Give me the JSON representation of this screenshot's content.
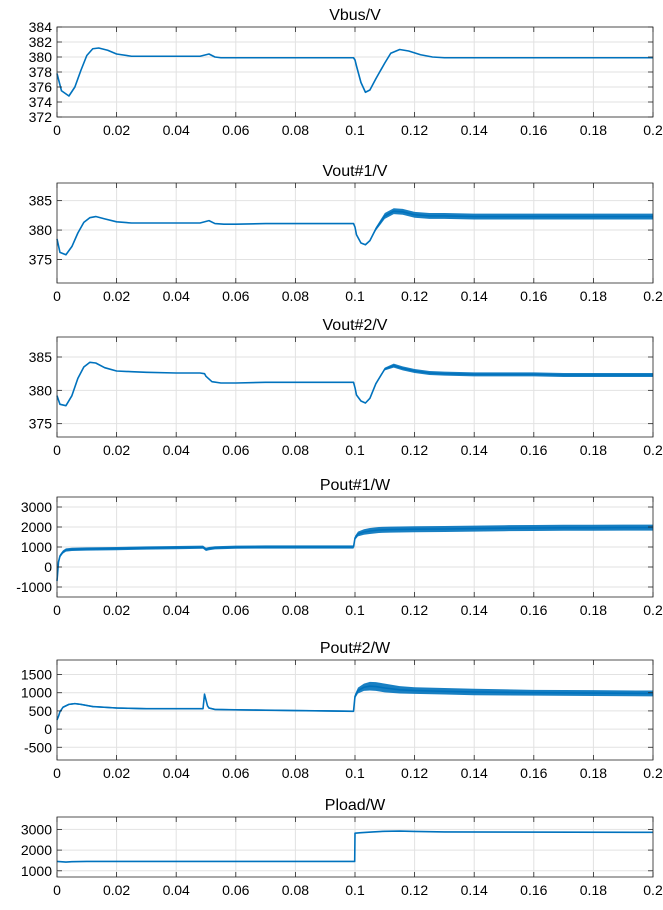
{
  "chart_data": [
    {
      "type": "line",
      "title": "Vbus/V",
      "xlim": [
        0,
        0.2
      ],
      "ylim": [
        372,
        384
      ],
      "xticks": [
        "0",
        "0.02",
        "0.04",
        "0.06",
        "0.08",
        "0.1",
        "0.12",
        "0.14",
        "0.16",
        "0.18",
        "0.2"
      ],
      "yticks": [
        "372",
        "374",
        "376",
        "378",
        "380",
        "382",
        "384"
      ],
      "series": [
        {
          "color": "#0072BD",
          "x": [
            0,
            0.0015,
            0.004,
            0.006,
            0.008,
            0.01,
            0.012,
            0.014,
            0.017,
            0.02,
            0.025,
            0.03,
            0.04,
            0.048,
            0.051,
            0.053,
            0.055,
            0.06,
            0.07,
            0.08,
            0.09,
            0.0995,
            0.1,
            0.1005,
            0.102,
            0.1035,
            0.105,
            0.107,
            0.11,
            0.112,
            0.115,
            0.118,
            0.122,
            0.126,
            0.13,
            0.14,
            0.15,
            0.16,
            0.17,
            0.18,
            0.19,
            0.2
          ],
          "y": [
            377.8,
            375.5,
            374.8,
            376.0,
            378.2,
            380.2,
            381.1,
            381.2,
            380.9,
            380.4,
            380.1,
            380.1,
            380.1,
            380.1,
            380.4,
            380.0,
            379.9,
            379.9,
            379.9,
            379.9,
            379.9,
            379.9,
            379.6,
            378.8,
            376.6,
            375.3,
            375.6,
            377.1,
            379.2,
            380.5,
            381.0,
            380.8,
            380.3,
            380.0,
            379.9,
            379.9,
            379.9,
            379.9,
            379.9,
            379.9,
            379.9,
            379.9
          ]
        }
      ]
    },
    {
      "type": "line",
      "title": "Vout#1/V",
      "xlim": [
        0,
        0.2
      ],
      "ylim": [
        371,
        388
      ],
      "xticks": [
        "0",
        "0.02",
        "0.04",
        "0.06",
        "0.08",
        "0.1",
        "0.12",
        "0.14",
        "0.16",
        "0.18",
        "0.2"
      ],
      "yticks": [
        "375",
        "380",
        "385"
      ],
      "series": [
        {
          "color": "#0072BD",
          "x": [
            0,
            0.001,
            0.003,
            0.005,
            0.007,
            0.009,
            0.011,
            0.013,
            0.016,
            0.02,
            0.025,
            0.03,
            0.04,
            0.048,
            0.051,
            0.053,
            0.056,
            0.06,
            0.07,
            0.08,
            0.09,
            0.0995,
            0.1,
            0.1005,
            0.102,
            0.1035,
            0.105,
            0.107,
            0.11,
            0.113,
            0.116,
            0.12,
            0.125,
            0.13,
            0.14,
            0.15,
            0.16,
            0.17,
            0.18,
            0.19,
            0.2
          ],
          "y": [
            378.5,
            376.2,
            375.8,
            377.2,
            379.5,
            381.3,
            382.1,
            382.3,
            381.9,
            381.4,
            381.2,
            381.2,
            381.2,
            381.2,
            381.6,
            381.1,
            381.0,
            381.0,
            381.1,
            381.1,
            381.1,
            381.1,
            380.5,
            379.2,
            377.8,
            377.5,
            378.2,
            380.2,
            382.4,
            383.2,
            383.1,
            382.6,
            382.4,
            382.4,
            382.3,
            382.3,
            382.3,
            382.3,
            382.3,
            382.3,
            382.3
          ],
          "band": [
            0,
            0,
            0,
            0,
            0,
            0,
            0,
            0,
            0,
            0,
            0,
            0,
            0,
            0,
            0,
            0,
            0,
            0,
            0,
            0,
            0,
            0,
            0,
            0,
            0,
            0,
            0,
            0.3,
            0.5,
            0.5,
            0.5,
            0.5,
            0.5,
            0.5,
            0.5,
            0.5,
            0.5,
            0.5,
            0.5,
            0.5,
            0.5
          ]
        }
      ]
    },
    {
      "type": "line",
      "title": "Vout#2/V",
      "xlim": [
        0,
        0.2
      ],
      "ylim": [
        373,
        388
      ],
      "xticks": [
        "0",
        "0.02",
        "0.04",
        "0.06",
        "0.08",
        "0.1",
        "0.12",
        "0.14",
        "0.16",
        "0.18",
        "0.2"
      ],
      "yticks": [
        "375",
        "380",
        "385"
      ],
      "series": [
        {
          "color": "#0072BD",
          "x": [
            0,
            0.001,
            0.003,
            0.005,
            0.007,
            0.009,
            0.011,
            0.013,
            0.016,
            0.02,
            0.025,
            0.03,
            0.04,
            0.048,
            0.0495,
            0.05,
            0.052,
            0.055,
            0.06,
            0.07,
            0.08,
            0.09,
            0.0995,
            0.1,
            0.1005,
            0.102,
            0.1035,
            0.105,
            0.107,
            0.11,
            0.113,
            0.116,
            0.12,
            0.125,
            0.13,
            0.14,
            0.15,
            0.16,
            0.17,
            0.18,
            0.19,
            0.2
          ],
          "y": [
            379.2,
            377.9,
            377.7,
            379.2,
            381.8,
            383.5,
            384.2,
            384.1,
            383.4,
            382.9,
            382.8,
            382.7,
            382.6,
            382.6,
            382.5,
            382.1,
            381.3,
            381.1,
            381.1,
            381.2,
            381.2,
            381.2,
            381.2,
            380.4,
            379.3,
            378.4,
            378.1,
            378.8,
            381.0,
            383.2,
            383.7,
            383.3,
            382.9,
            382.6,
            382.5,
            382.4,
            382.4,
            382.4,
            382.3,
            382.3,
            382.3,
            382.3
          ],
          "band": [
            0,
            0,
            0,
            0,
            0,
            0,
            0,
            0,
            0,
            0,
            0,
            0,
            0,
            0,
            0,
            0,
            0,
            0,
            0,
            0,
            0,
            0,
            0,
            0,
            0,
            0,
            0,
            0,
            0,
            0.2,
            0.3,
            0.3,
            0.3,
            0.3,
            0.3,
            0.3,
            0.3,
            0.3,
            0.3,
            0.3,
            0.3,
            0.3
          ]
        }
      ]
    },
    {
      "type": "line",
      "title": "Pout#1/W",
      "xlim": [
        0,
        0.2
      ],
      "ylim": [
        -1500,
        3500
      ],
      "xticks": [
        "0",
        "0.02",
        "0.04",
        "0.06",
        "0.08",
        "0.1",
        "0.12",
        "0.14",
        "0.16",
        "0.18",
        "0.2"
      ],
      "yticks": [
        "-1000",
        "0",
        "1000",
        "2000",
        "3000"
      ],
      "series": [
        {
          "color": "#0072BD",
          "x": [
            0,
            0.0005,
            0.001,
            0.002,
            0.003,
            0.005,
            0.01,
            0.02,
            0.03,
            0.04,
            0.049,
            0.05,
            0.051,
            0.053,
            0.06,
            0.07,
            0.08,
            0.09,
            0.0995,
            0.1,
            0.101,
            0.103,
            0.105,
            0.108,
            0.112,
            0.12,
            0.13,
            0.14,
            0.15,
            0.16,
            0.17,
            0.18,
            0.19,
            0.2
          ],
          "y": [
            -700,
            250,
            550,
            750,
            850,
            880,
            900,
            920,
            950,
            970,
            990,
            880,
            920,
            960,
            990,
            1000,
            1000,
            1000,
            1000,
            1450,
            1650,
            1750,
            1800,
            1850,
            1870,
            1890,
            1900,
            1920,
            1940,
            1950,
            1960,
            1960,
            1970,
            1970
          ],
          "band": [
            0,
            80,
            80,
            80,
            80,
            80,
            80,
            80,
            80,
            80,
            80,
            80,
            80,
            80,
            80,
            80,
            80,
            80,
            80,
            100,
            120,
            140,
            150,
            150,
            150,
            150,
            150,
            150,
            150,
            150,
            150,
            150,
            150,
            150
          ]
        }
      ]
    },
    {
      "type": "line",
      "title": "Pout#2/W",
      "xlim": [
        0,
        0.2
      ],
      "ylim": [
        -850,
        1900
      ],
      "xticks": [
        "0",
        "0.02",
        "0.04",
        "0.06",
        "0.08",
        "0.1",
        "0.12",
        "0.14",
        "0.16",
        "0.18",
        "0.2"
      ],
      "yticks": [
        "-500",
        "0",
        "500",
        "1000",
        "1500"
      ],
      "series": [
        {
          "color": "#0072BD",
          "x": [
            0,
            0.0005,
            0.001,
            0.002,
            0.004,
            0.006,
            0.008,
            0.012,
            0.02,
            0.03,
            0.045,
            0.049,
            0.0495,
            0.0505,
            0.051,
            0.053,
            0.06,
            0.07,
            0.08,
            0.09,
            0.0995,
            0.1,
            0.101,
            0.103,
            0.105,
            0.107,
            0.11,
            0.115,
            0.12,
            0.13,
            0.14,
            0.16,
            0.18,
            0.2
          ],
          "y": [
            250,
            350,
            480,
            600,
            680,
            700,
            680,
            620,
            580,
            560,
            560,
            560,
            960,
            640,
            580,
            540,
            530,
            520,
            510,
            500,
            490,
            900,
            1060,
            1150,
            1180,
            1170,
            1130,
            1080,
            1060,
            1040,
            1020,
            1000,
            990,
            980
          ],
          "band": [
            0,
            20,
            20,
            20,
            20,
            20,
            20,
            20,
            20,
            20,
            20,
            20,
            0,
            20,
            20,
            20,
            20,
            20,
            20,
            20,
            20,
            60,
            80,
            100,
            120,
            120,
            120,
            100,
            90,
            90,
            90,
            80,
            80,
            80
          ]
        }
      ]
    },
    {
      "type": "line",
      "title": "Pload/W",
      "xlim": [
        0,
        0.2
      ],
      "ylim": [
        700,
        3600
      ],
      "xticks": [
        "0",
        "0.02",
        "0.04",
        "0.06",
        "0.08",
        "0.1",
        "0.12",
        "0.14",
        "0.16",
        "0.18",
        "0.2"
      ],
      "yticks": [
        "1000",
        "2000",
        "3000"
      ],
      "series": [
        {
          "color": "#0072BD",
          "x": [
            0,
            0.003,
            0.005,
            0.01,
            0.05,
            0.08,
            0.0999,
            0.1,
            0.102,
            0.106,
            0.11,
            0.115,
            0.12,
            0.13,
            0.15,
            0.2
          ],
          "y": [
            1450,
            1420,
            1440,
            1450,
            1450,
            1450,
            1450,
            2820,
            2840,
            2880,
            2910,
            2920,
            2900,
            2880,
            2870,
            2860
          ]
        }
      ]
    }
  ]
}
